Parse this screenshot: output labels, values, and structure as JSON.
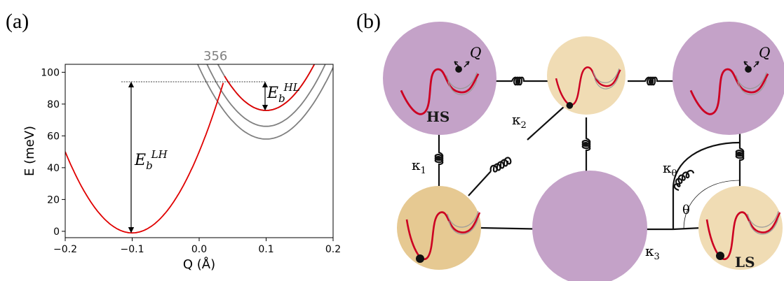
{
  "panel_labels": {
    "a": "(a)",
    "b": "(b)"
  },
  "chart_data": {
    "type": "line",
    "title": "356",
    "xlabel": "Q (Å)",
    "ylabel": "E (meV)",
    "xlim": [
      -0.2,
      0.2
    ],
    "ylim": [
      -4,
      105
    ],
    "x_ticks": [
      "−0.2",
      "−0.1",
      "0.0",
      "0.1",
      "0.2"
    ],
    "y_ticks": [
      "0",
      "20",
      "40",
      "60",
      "80",
      "100"
    ],
    "series": [
      {
        "kind": "LS parabola",
        "color": "#e00000",
        "center": -0.1,
        "min": -1,
        "curvature": 5100
      },
      {
        "kind": "HS parabola",
        "color": "#e00000",
        "center": 0.1,
        "min": 76,
        "curvature": 5600
      },
      {
        "kind": "HS parabola",
        "color": "#808080",
        "center": 0.1,
        "min": 76,
        "curvature": 5600
      },
      {
        "kind": "HS parabola",
        "color": "#808080",
        "center": 0.1,
        "min": 66,
        "curvature": 5000
      },
      {
        "kind": "HS parabola",
        "color": "#808080",
        "center": 0.1,
        "min": 58,
        "curvature": 4500
      }
    ],
    "crossing_energy": 94,
    "annotations": {
      "barrier_LH": {
        "base": "E",
        "sub": "b",
        "sup": "LH"
      },
      "barrier_HL": {
        "base": "E",
        "sub": "b",
        "sup": "HL"
      }
    }
  },
  "diagram": {
    "q_label": "Q",
    "hs_label": "HS",
    "ls_label": "LS",
    "spring_labels": {
      "k1": "κ",
      "k1_sub": "1",
      "k2": "κ",
      "k2_sub": "2",
      "k3": "κ",
      "k3_sub": "3",
      "ktheta": "κ",
      "ktheta_sub": "θ"
    },
    "angle_label": "θ",
    "colors": {
      "hs": "#c4a2c8",
      "ls": "#f0dcb4",
      "ls_dark": "#e6c992",
      "curve": "#cc0022",
      "grey": "#9a9a9a"
    }
  }
}
